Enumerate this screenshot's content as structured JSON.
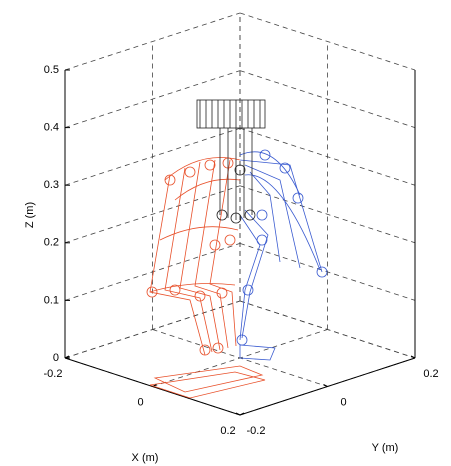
{
  "chart_data": {
    "type": "3d-line",
    "xlabel": "X (m)",
    "ylabel": "Y (m)",
    "zlabel": "Z (m)",
    "xlim": [
      -0.2,
      0.2
    ],
    "xticks": [
      -0.2,
      0,
      0.2
    ],
    "ylim": [
      -0.2,
      0.2
    ],
    "yticks": [
      -0.2,
      0,
      0.2
    ],
    "zlim": [
      0,
      0.5
    ],
    "zticks": [
      0,
      0.1,
      0.2,
      0.3,
      0.4,
      0.5
    ],
    "grid": true
  }
}
